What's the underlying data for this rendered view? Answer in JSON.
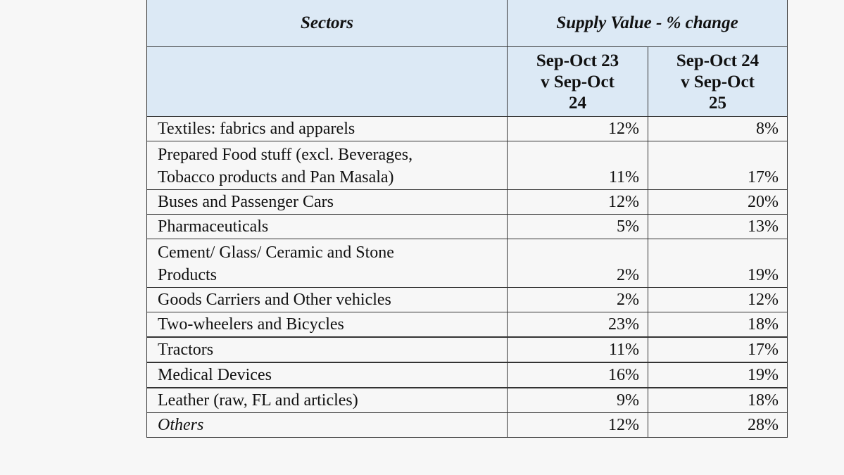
{
  "table": {
    "header": {
      "sectors_label": "Sectors",
      "group_label": "Supply Value - % change",
      "columns": [
        {
          "label_line1": "Sep-Oct 23",
          "label_line2": "v Sep-Oct",
          "label_line3": "24"
        },
        {
          "label_line1": "Sep-Oct 24",
          "label_line2": "v Sep-Oct",
          "label_line3": "25"
        }
      ]
    },
    "rows": [
      {
        "sector_line1": "Textiles: fabrics and apparels",
        "sector_line2": "",
        "v1": "12%",
        "v2": "8%"
      },
      {
        "sector_line1": "Prepared Food stuff (excl. Beverages,",
        "sector_line2": "Tobacco products and Pan Masala)",
        "v1": "11%",
        "v2": "17%"
      },
      {
        "sector_line1": "Buses and Passenger Cars",
        "sector_line2": "",
        "v1": "12%",
        "v2": "20%"
      },
      {
        "sector_line1": "Pharmaceuticals",
        "sector_line2": "",
        "v1": "5%",
        "v2": "13%"
      },
      {
        "sector_line1": "Cement/ Glass/ Ceramic and Stone",
        "sector_line2": "Products",
        "v1": "2%",
        "v2": "19%"
      },
      {
        "sector_line1": "Goods Carriers and Other vehicles",
        "sector_line2": "",
        "v1": "2%",
        "v2": "12%"
      },
      {
        "sector_line1": "Two-wheelers and Bicycles",
        "sector_line2": "",
        "v1": "23%",
        "v2": "18%"
      },
      {
        "sector_line1": "Tractors",
        "sector_line2": "",
        "v1": "11%",
        "v2": "17%"
      },
      {
        "sector_line1": "Medical Devices",
        "sector_line2": "",
        "v1": "16%",
        "v2": "19%"
      },
      {
        "sector_line1": "Leather (raw, FL and articles)",
        "sector_line2": "",
        "v1": "9%",
        "v2": "18%"
      },
      {
        "sector_line1": "Others",
        "sector_line2": "",
        "v1": "12%",
        "v2": "28%"
      }
    ]
  },
  "colors": {
    "header_bg": "#dce9f5",
    "body_bg": "#f7f7f7",
    "border": "#333333",
    "text": "#111111"
  }
}
